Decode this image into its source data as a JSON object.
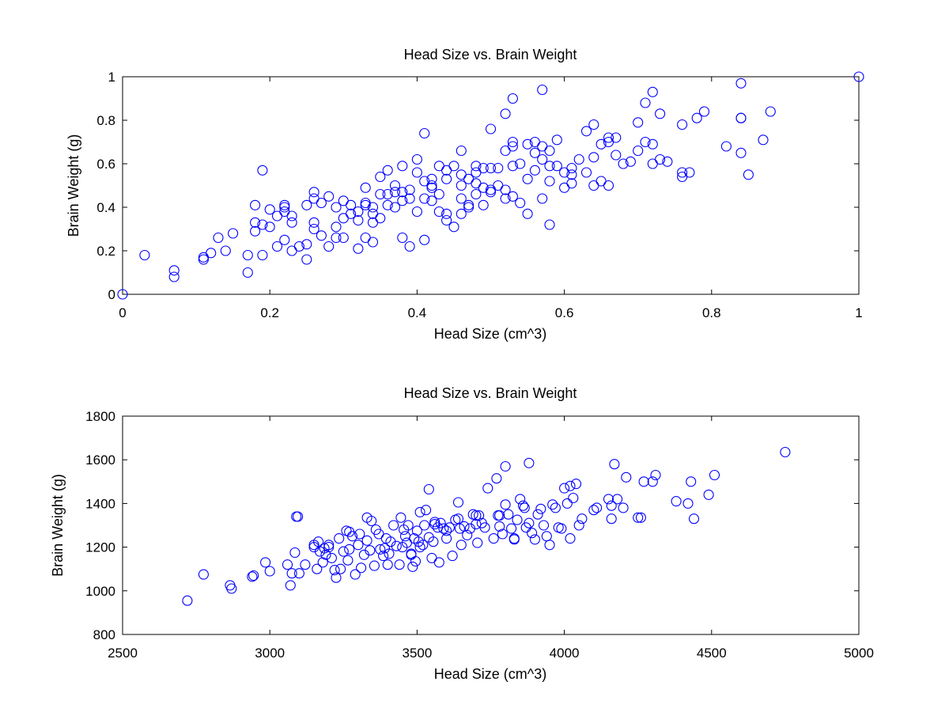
{
  "chart_data": [
    {
      "type": "scatter",
      "title": "Head Size vs. Brain Weight",
      "xlabel": "Head Size (cm^3)",
      "ylabel": "Brain Weight (g)",
      "xlim": [
        0,
        1
      ],
      "ylim": [
        0,
        1
      ],
      "xticks": [
        0,
        0.2,
        0.4,
        0.6,
        0.8,
        1
      ],
      "yticks": [
        0,
        0.2,
        0.4,
        0.6,
        0.8,
        1
      ],
      "xticklabels": [
        "0",
        "0.2",
        "0.4",
        "0.6",
        "0.8",
        "1"
      ],
      "yticklabels": [
        "0",
        "0.2",
        "0.4",
        "0.6",
        "0.8",
        "1"
      ],
      "grid": false,
      "marker": "open-circle",
      "color": "#0000ff",
      "series": [
        {
          "x": [
            0.0,
            0.03,
            0.07,
            0.07,
            0.11,
            0.11,
            0.13,
            0.14,
            0.17,
            0.17,
            0.18,
            0.18,
            0.19,
            0.19,
            0.19,
            0.2,
            0.21,
            0.21,
            0.22,
            0.22,
            0.22,
            0.22,
            0.23,
            0.23,
            0.24,
            0.25,
            0.25,
            0.25,
            0.26,
            0.26,
            0.26,
            0.27,
            0.27,
            0.28,
            0.28,
            0.29,
            0.29,
            0.3,
            0.3,
            0.3,
            0.31,
            0.31,
            0.32,
            0.32,
            0.32,
            0.33,
            0.33,
            0.33,
            0.34,
            0.34,
            0.34,
            0.34,
            0.35,
            0.35,
            0.36,
            0.36,
            0.36,
            0.37,
            0.37,
            0.37,
            0.38,
            0.38,
            0.38,
            0.38,
            0.39,
            0.39,
            0.39,
            0.4,
            0.4,
            0.4,
            0.41,
            0.41,
            0.41,
            0.42,
            0.42,
            0.42,
            0.42,
            0.43,
            0.43,
            0.43,
            0.44,
            0.44,
            0.44,
            0.45,
            0.45,
            0.46,
            0.46,
            0.46,
            0.46,
            0.47,
            0.47,
            0.47,
            0.48,
            0.48,
            0.48,
            0.48,
            0.49,
            0.49,
            0.49,
            0.5,
            0.5,
            0.5,
            0.51,
            0.51,
            0.52,
            0.52,
            0.52,
            0.53,
            0.53,
            0.53,
            0.53,
            0.54,
            0.54,
            0.55,
            0.55,
            0.55,
            0.56,
            0.56,
            0.56,
            0.57,
            0.57,
            0.57,
            0.58,
            0.58,
            0.58,
            0.59,
            0.59,
            0.6,
            0.6,
            0.61,
            0.61,
            0.62,
            0.63,
            0.63,
            0.64,
            0.64,
            0.64,
            0.65,
            0.65,
            0.66,
            0.66,
            0.66,
            0.67,
            0.68,
            0.69,
            0.7,
            0.71,
            0.71,
            0.72,
            0.72,
            0.73,
            0.73,
            0.76,
            0.76,
            0.77,
            0.78,
            0.79,
            0.82,
            0.84,
            0.84,
            0.84,
            0.85,
            0.87,
            0.88,
            1.0,
            0.53,
            0.57,
            0.72,
            0.84,
            0.5,
            0.52,
            0.41,
            0.18,
            0.2,
            0.26,
            0.35,
            0.44,
            0.58,
            0.61,
            0.67,
            0.7,
            0.74,
            0.76,
            0.46,
            0.33,
            0.29,
            0.23,
            0.12,
            0.15
          ],
          "y": [
            0.0,
            0.18,
            0.11,
            0.08,
            0.17,
            0.16,
            0.26,
            0.2,
            0.1,
            0.18,
            0.33,
            0.29,
            0.57,
            0.32,
            0.18,
            0.31,
            0.36,
            0.22,
            0.4,
            0.38,
            0.41,
            0.25,
            0.33,
            0.36,
            0.22,
            0.16,
            0.41,
            0.23,
            0.47,
            0.44,
            0.33,
            0.42,
            0.27,
            0.45,
            0.22,
            0.4,
            0.31,
            0.43,
            0.35,
            0.26,
            0.41,
            0.37,
            0.38,
            0.34,
            0.21,
            0.49,
            0.41,
            0.26,
            0.4,
            0.37,
            0.33,
            0.24,
            0.54,
            0.35,
            0.57,
            0.46,
            0.41,
            0.5,
            0.47,
            0.4,
            0.59,
            0.47,
            0.43,
            0.26,
            0.48,
            0.44,
            0.22,
            0.62,
            0.56,
            0.38,
            0.52,
            0.44,
            0.25,
            0.53,
            0.5,
            0.43,
            0.49,
            0.59,
            0.46,
            0.38,
            0.57,
            0.37,
            0.34,
            0.59,
            0.31,
            0.66,
            0.5,
            0.44,
            0.37,
            0.53,
            0.41,
            0.4,
            0.59,
            0.56,
            0.51,
            0.46,
            0.58,
            0.49,
            0.41,
            0.76,
            0.58,
            0.47,
            0.58,
            0.5,
            0.83,
            0.66,
            0.48,
            0.9,
            0.68,
            0.59,
            0.45,
            0.6,
            0.42,
            0.69,
            0.53,
            0.37,
            0.7,
            0.65,
            0.57,
            0.68,
            0.62,
            0.44,
            0.66,
            0.59,
            0.52,
            0.71,
            0.59,
            0.56,
            0.49,
            0.58,
            0.51,
            0.62,
            0.56,
            0.75,
            0.5,
            0.63,
            0.78,
            0.69,
            0.52,
            0.72,
            0.5,
            0.7,
            0.64,
            0.6,
            0.61,
            0.66,
            0.7,
            0.88,
            0.93,
            0.6,
            0.83,
            0.62,
            0.78,
            0.56,
            0.56,
            0.81,
            0.84,
            0.68,
            0.97,
            0.81,
            0.65,
            0.55,
            0.71,
            0.84,
            1.0,
            0.7,
            0.94,
            0.69,
            0.81,
            0.48,
            0.44,
            0.74,
            0.41,
            0.39,
            0.3,
            0.46,
            0.53,
            0.32,
            0.55,
            0.72,
            0.79,
            0.61,
            0.54,
            0.55,
            0.42,
            0.26,
            0.2,
            0.19,
            0.28
          ]
        }
      ]
    },
    {
      "type": "scatter",
      "title": "Head Size vs. Brain Weight",
      "xlabel": "Head Size (cm^3)",
      "ylabel": "Brain Weight (g)",
      "xlim": [
        2500,
        5000
      ],
      "ylim": [
        800,
        1800
      ],
      "xticks": [
        2500,
        3000,
        3500,
        4000,
        4500,
        5000
      ],
      "yticks": [
        800,
        1000,
        1200,
        1400,
        1600,
        1800
      ],
      "xticklabels": [
        "2500",
        "3000",
        "3500",
        "4000",
        "4500",
        "5000"
      ],
      "yticklabels": [
        "800",
        "1000",
        "1200",
        "1400",
        "1600",
        "1800"
      ],
      "grid": false,
      "marker": "open-circle",
      "color": "#0000ff",
      "series": [
        {
          "x": [
            2720,
            2775,
            2865,
            2870,
            2940,
            2945,
            2985,
            3000,
            3060,
            3070,
            3075,
            3085,
            3095,
            3100,
            3120,
            3150,
            3160,
            3165,
            3170,
            3180,
            3185,
            3190,
            3200,
            3210,
            3220,
            3225,
            3235,
            3240,
            3250,
            3260,
            3265,
            3270,
            3280,
            3290,
            3300,
            3305,
            3310,
            3320,
            3330,
            3340,
            3345,
            3355,
            3360,
            3370,
            3375,
            3385,
            3390,
            3395,
            3400,
            3405,
            3410,
            3420,
            3430,
            3440,
            3445,
            3455,
            3460,
            3465,
            3470,
            3480,
            3485,
            3490,
            3495,
            3500,
            3505,
            3510,
            3520,
            3525,
            3530,
            3540,
            3550,
            3555,
            3560,
            3570,
            3575,
            3580,
            3590,
            3600,
            3610,
            3620,
            3630,
            3640,
            3645,
            3650,
            3660,
            3670,
            3680,
            3690,
            3700,
            3705,
            3710,
            3720,
            3730,
            3740,
            3760,
            3770,
            3775,
            3780,
            3790,
            3800,
            3810,
            3820,
            3830,
            3840,
            3850,
            3860,
            3865,
            3870,
            3880,
            3890,
            3900,
            3910,
            3920,
            3930,
            3940,
            3960,
            3970,
            3980,
            3990,
            4000,
            4010,
            4020,
            4030,
            4040,
            4050,
            4060,
            4100,
            4110,
            4150,
            4160,
            4170,
            4180,
            4200,
            4210,
            4250,
            4260,
            4270,
            4300,
            4310,
            4380,
            4420,
            4430,
            4440,
            4490,
            4510,
            4750,
            3540,
            3600,
            3800,
            3880,
            3450,
            3700,
            3090,
            3330,
            3510,
            3640,
            3780,
            3830,
            3950,
            4020,
            4160,
            3560,
            3480,
            3270,
            3200,
            3150
          ],
          "y": [
            955,
            1075,
            1025,
            1010,
            1065,
            1070,
            1130,
            1090,
            1120,
            1025,
            1080,
            1175,
            1340,
            1080,
            1120,
            1200,
            1100,
            1225,
            1180,
            1130,
            1195,
            1165,
            1210,
            1150,
            1095,
            1060,
            1240,
            1100,
            1180,
            1275,
            1140,
            1270,
            1250,
            1075,
            1210,
            1260,
            1105,
            1165,
            1230,
            1185,
            1320,
            1115,
            1280,
            1260,
            1190,
            1160,
            1195,
            1240,
            1120,
            1170,
            1225,
            1300,
            1205,
            1120,
            1335,
            1280,
            1250,
            1220,
            1300,
            1165,
            1110,
            1240,
            1135,
            1275,
            1225,
            1360,
            1210,
            1300,
            1370,
            1245,
            1150,
            1225,
            1315,
            1290,
            1130,
            1310,
            1285,
            1240,
            1290,
            1160,
            1325,
            1405,
            1285,
            1210,
            1295,
            1255,
            1285,
            1350,
            1305,
            1220,
            1345,
            1310,
            1290,
            1470,
            1240,
            1515,
            1345,
            1295,
            1260,
            1570,
            1350,
            1285,
            1240,
            1325,
            1420,
            1390,
            1380,
            1290,
            1585,
            1265,
            1235,
            1350,
            1375,
            1300,
            1250,
            1395,
            1380,
            1290,
            1285,
            1470,
            1400,
            1480,
            1425,
            1490,
            1300,
            1330,
            1370,
            1380,
            1420,
            1390,
            1580,
            1420,
            1380,
            1520,
            1335,
            1335,
            1500,
            1500,
            1530,
            1410,
            1400,
            1500,
            1330,
            1440,
            1530,
            1635,
            1465,
            1275,
            1395,
            1310,
            1200,
            1345,
            1340,
            1335,
            1200,
            1330,
            1345,
            1235,
            1210,
            1240,
            1330,
            1305,
            1170,
            1190,
            1200,
            1210
          ]
        }
      ]
    }
  ]
}
